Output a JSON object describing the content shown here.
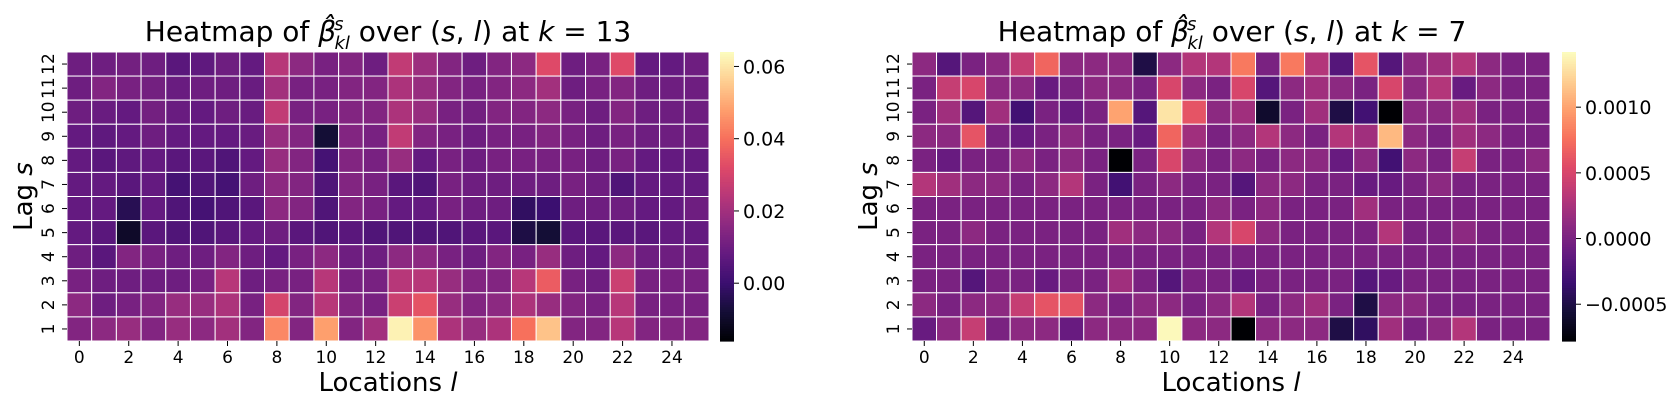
{
  "chart_data": [
    {
      "type": "heatmap",
      "title": "Heatmap of $\\hat{\\beta}^s_{kl}$ over $(s, l)$ at $k = 13$",
      "title_parts": [
        "Heatmap of ",
        "β̂",
        "s",
        "kl",
        " over (",
        "s",
        ", ",
        "l",
        ") at ",
        "k",
        " = 13"
      ],
      "xlabel_parts": [
        "Locations ",
        "l"
      ],
      "ylabel_parts": [
        "Lag ",
        "s"
      ],
      "xticklabels": [
        "0",
        "2",
        "4",
        "6",
        "8",
        "10",
        "12",
        "14",
        "16",
        "18",
        "20",
        "22",
        "24"
      ],
      "yticklabels": [
        "1",
        "2",
        "3",
        "4",
        "5",
        "6",
        "7",
        "8",
        "9",
        "10",
        "11",
        "12"
      ],
      "colormap": "magma",
      "vmin": -0.016,
      "vmax": 0.064,
      "colorbar_ticks": [
        0.06,
        0.04,
        0.02,
        0.0
      ],
      "colorbar_ticklabels": [
        "0.06",
        "0.04",
        "0.02",
        "0.00"
      ],
      "rows_lag_top_to_bottom": [
        12,
        11,
        10,
        9,
        8,
        7,
        6,
        5,
        4,
        3,
        2,
        1
      ],
      "values": [
        [
          0.01,
          0.01,
          0.011,
          0.01,
          0.006,
          0.007,
          0.01,
          0.008,
          0.024,
          0.016,
          0.012,
          0.014,
          0.01,
          0.026,
          0.019,
          0.014,
          0.01,
          0.014,
          0.016,
          0.032,
          0.01,
          0.012,
          0.032,
          0.008,
          0.008,
          0.01
        ],
        [
          0.01,
          0.014,
          0.012,
          0.011,
          0.009,
          0.01,
          0.01,
          0.009,
          0.02,
          0.012,
          0.012,
          0.014,
          0.014,
          0.022,
          0.018,
          0.014,
          0.012,
          0.014,
          0.016,
          0.02,
          0.01,
          0.012,
          0.014,
          0.01,
          0.01,
          0.01
        ],
        [
          0.01,
          0.009,
          0.008,
          0.011,
          0.009,
          0.008,
          0.01,
          0.009,
          0.026,
          0.012,
          0.012,
          0.014,
          0.014,
          0.022,
          0.018,
          0.012,
          0.011,
          0.014,
          0.014,
          0.016,
          0.012,
          0.01,
          0.014,
          0.01,
          0.01,
          0.01
        ],
        [
          0.008,
          0.007,
          0.008,
          0.01,
          0.008,
          0.008,
          0.008,
          0.009,
          0.018,
          0.014,
          -0.008,
          0.014,
          0.012,
          0.026,
          0.014,
          0.012,
          0.01,
          0.012,
          0.012,
          0.014,
          0.012,
          0.01,
          0.012,
          0.01,
          0.01,
          0.01
        ],
        [
          0.008,
          0.006,
          0.007,
          0.008,
          0.006,
          0.006,
          0.004,
          0.008,
          0.018,
          0.014,
          0.002,
          0.014,
          0.012,
          0.018,
          0.008,
          0.012,
          0.01,
          0.012,
          0.012,
          0.012,
          0.012,
          0.01,
          0.012,
          0.008,
          0.008,
          0.008
        ],
        [
          0.008,
          0.008,
          0.006,
          0.008,
          0.002,
          0.004,
          0.002,
          0.01,
          0.016,
          0.014,
          0.004,
          0.014,
          0.012,
          0.006,
          0.004,
          0.012,
          0.01,
          0.01,
          0.01,
          0.01,
          0.012,
          0.01,
          0.004,
          0.008,
          0.008,
          0.008
        ],
        [
          0.008,
          0.008,
          -0.004,
          0.008,
          0.004,
          0.002,
          0.004,
          0.006,
          0.016,
          0.014,
          0.004,
          0.014,
          0.012,
          0.008,
          0.008,
          0.012,
          0.01,
          0.01,
          -0.002,
          0.0,
          0.01,
          0.01,
          0.01,
          0.008,
          0.008,
          0.01
        ],
        [
          0.008,
          0.006,
          -0.01,
          0.006,
          0.004,
          0.004,
          0.006,
          0.008,
          0.01,
          0.006,
          0.004,
          0.006,
          0.004,
          0.004,
          0.004,
          0.004,
          0.006,
          0.006,
          -0.006,
          -0.008,
          0.006,
          0.006,
          0.006,
          0.006,
          0.008,
          0.008
        ],
        [
          0.01,
          0.006,
          0.014,
          0.012,
          0.01,
          0.01,
          0.014,
          0.01,
          0.008,
          0.012,
          0.016,
          0.01,
          0.01,
          0.016,
          0.016,
          0.012,
          0.01,
          0.014,
          0.012,
          0.018,
          0.01,
          0.008,
          0.016,
          0.01,
          0.01,
          0.01
        ],
        [
          0.012,
          0.01,
          0.01,
          0.01,
          0.01,
          0.012,
          0.024,
          0.01,
          0.012,
          0.012,
          0.024,
          0.012,
          0.012,
          0.024,
          0.024,
          0.018,
          0.014,
          0.014,
          0.024,
          0.036,
          0.012,
          0.01,
          0.028,
          0.012,
          0.012,
          0.012
        ],
        [
          0.016,
          0.01,
          0.012,
          0.014,
          0.018,
          0.018,
          0.022,
          0.012,
          0.03,
          0.014,
          0.024,
          0.014,
          0.012,
          0.028,
          0.034,
          0.018,
          0.014,
          0.016,
          0.022,
          0.018,
          0.014,
          0.012,
          0.024,
          0.012,
          0.012,
          0.012
        ],
        [
          0.014,
          0.016,
          0.018,
          0.014,
          0.018,
          0.016,
          0.02,
          0.014,
          0.044,
          0.014,
          0.048,
          0.014,
          0.02,
          0.062,
          0.046,
          0.022,
          0.018,
          0.022,
          0.04,
          0.054,
          0.014,
          0.014,
          0.024,
          0.014,
          0.014,
          0.014
        ]
      ]
    },
    {
      "type": "heatmap",
      "title": "Heatmap of $\\hat{\\beta}^s_{kl}$ over $(s, l)$ at $k = 7$",
      "title_parts": [
        "Heatmap of ",
        "β̂",
        "s",
        "kl",
        " over (",
        "s",
        ", ",
        "l",
        ") at ",
        "k",
        " = 7"
      ],
      "xlabel_parts": [
        "Locations ",
        "l"
      ],
      "ylabel_parts": [
        "Lag ",
        "s"
      ],
      "xticklabels": [
        "0",
        "2",
        "4",
        "6",
        "8",
        "10",
        "12",
        "14",
        "16",
        "18",
        "20",
        "22",
        "24"
      ],
      "yticklabels": [
        "1",
        "2",
        "3",
        "4",
        "5",
        "6",
        "7",
        "8",
        "9",
        "10",
        "11",
        "12"
      ],
      "colormap": "magma",
      "vmin": -0.00078,
      "vmax": 0.00142,
      "colorbar_ticks": [
        0.001,
        0.0005,
        0.0,
        -0.0005
      ],
      "colorbar_ticklabels": [
        "0.0010",
        "0.0005",
        "0.0000",
        "−0.0005"
      ],
      "rows_lag_top_to_bottom": [
        12,
        11,
        10,
        9,
        8,
        7,
        6,
        5,
        4,
        3,
        2,
        1
      ],
      "values": [
        [
          0.0001,
          -0.0002,
          0.0,
          0.0001,
          0.0004,
          0.0007,
          0.0001,
          0.0001,
          0.0001,
          -0.0005,
          0.0001,
          0.0003,
          0.0003,
          0.0008,
          0.0,
          0.0008,
          0.0003,
          -0.0002,
          0.0006,
          -0.0002,
          0.0001,
          0.0002,
          0.0003,
          0.0001,
          0.0,
          0.0
        ],
        [
          0.0,
          0.0004,
          0.0005,
          0.0001,
          0.0001,
          -0.0001,
          0.0,
          0.0001,
          0.0001,
          0.0,
          0.0005,
          0.0001,
          0.0,
          0.0005,
          -0.0002,
          0.0001,
          0.0002,
          0.0001,
          0.0,
          0.0005,
          0.0001,
          0.0003,
          -0.0001,
          0.0001,
          0.0,
          0.0
        ],
        [
          0.0,
          0.0002,
          -0.0002,
          0.0002,
          -0.0003,
          0.0,
          -0.0001,
          0.0,
          0.001,
          -0.0002,
          0.0013,
          0.0006,
          0.0001,
          0.0002,
          -0.0006,
          0.0,
          0.0002,
          -0.0005,
          -0.0003,
          -0.0008,
          0.0001,
          0.0001,
          0.0002,
          0.0,
          0.0,
          0.0
        ],
        [
          0.0001,
          0.0001,
          0.0006,
          0.0,
          -0.0001,
          0.0,
          0.0001,
          0.0,
          0.0,
          -0.0001,
          0.0007,
          0.0002,
          0.0,
          0.0001,
          0.0003,
          0.0001,
          0.0,
          0.0003,
          0.0002,
          0.0011,
          0.0001,
          0.0,
          0.0002,
          0.0001,
          0.0,
          0.0
        ],
        [
          0.0,
          -0.0001,
          0.0,
          0.0,
          0.0001,
          0.0,
          0.0001,
          0.0,
          -0.0008,
          0.0,
          0.0005,
          0.0001,
          0.0,
          0.0001,
          0.0,
          0.0001,
          0.0001,
          -0.0001,
          0.0001,
          -0.0003,
          0.0001,
          0.0,
          0.0004,
          0.0,
          0.0,
          0.0001
        ],
        [
          0.0003,
          0.0002,
          0.0001,
          0.0001,
          0.0,
          0.0001,
          0.0003,
          0.0,
          -0.0003,
          0.0,
          0.0001,
          0.0,
          0.0,
          -0.0002,
          0.0001,
          0.0001,
          0.0,
          0.0,
          -0.0001,
          -0.0001,
          0.0,
          0.0001,
          0.0,
          0.0,
          0.0,
          0.0
        ],
        [
          0.0,
          0.0,
          0.0,
          0.0,
          0.0,
          0.0,
          0.0,
          0.0,
          0.0,
          0.0,
          0.0,
          0.0,
          0.0001,
          0.0,
          0.0001,
          0.0,
          0.0,
          0.0,
          0.0002,
          0.0,
          0.0,
          0.0,
          0.0,
          0.0,
          0.0,
          0.0
        ],
        [
          0.0,
          0.0,
          0.0001,
          0.0,
          0.0,
          0.0,
          0.0,
          0.0,
          0.0002,
          0.0001,
          0.0001,
          0.0,
          0.0003,
          0.0005,
          0.0001,
          0.0,
          0.0,
          0.0,
          0.0,
          0.0003,
          0.0,
          0.0,
          0.0001,
          0.0,
          0.0,
          0.0
        ],
        [
          0.0,
          0.0,
          0.0,
          0.0,
          0.0,
          0.0,
          0.0,
          0.0,
          0.0,
          0.0,
          0.0,
          0.0,
          0.0,
          0.0,
          0.0,
          0.0,
          0.0,
          0.0,
          0.0,
          0.0,
          0.0,
          0.0,
          0.0,
          0.0,
          0.0,
          0.0
        ],
        [
          0.0,
          0.0,
          -0.0002,
          0.0,
          0.0,
          -0.0001,
          0.0,
          0.0,
          0.0002,
          0.0,
          -0.0002,
          0.0,
          0.0,
          -0.0001,
          0.0,
          0.0,
          0.0,
          0.0,
          -0.0002,
          -0.0001,
          0.0,
          0.0,
          0.0,
          0.0,
          0.0,
          0.0
        ],
        [
          0.0001,
          0.0,
          0.0001,
          0.0001,
          0.0004,
          0.0006,
          0.0006,
          0.0001,
          0.0,
          0.0001,
          0.0001,
          0.0,
          0.0001,
          0.0003,
          0.0,
          0.0001,
          0.0002,
          0.0,
          -0.0005,
          0.0001,
          0.0001,
          0.0,
          0.0,
          0.0,
          0.0,
          0.0
        ],
        [
          -0.0001,
          0.0001,
          0.0004,
          0.0,
          0.0001,
          0.0001,
          -0.0001,
          0.0001,
          0.0001,
          0.0001,
          0.0014,
          0.0001,
          0.0001,
          -0.0008,
          0.0001,
          0.0001,
          0.0001,
          -0.0005,
          -0.0004,
          0.0002,
          0.0,
          0.0001,
          0.0003,
          0.0,
          0.0,
          0.0
        ]
      ]
    }
  ]
}
